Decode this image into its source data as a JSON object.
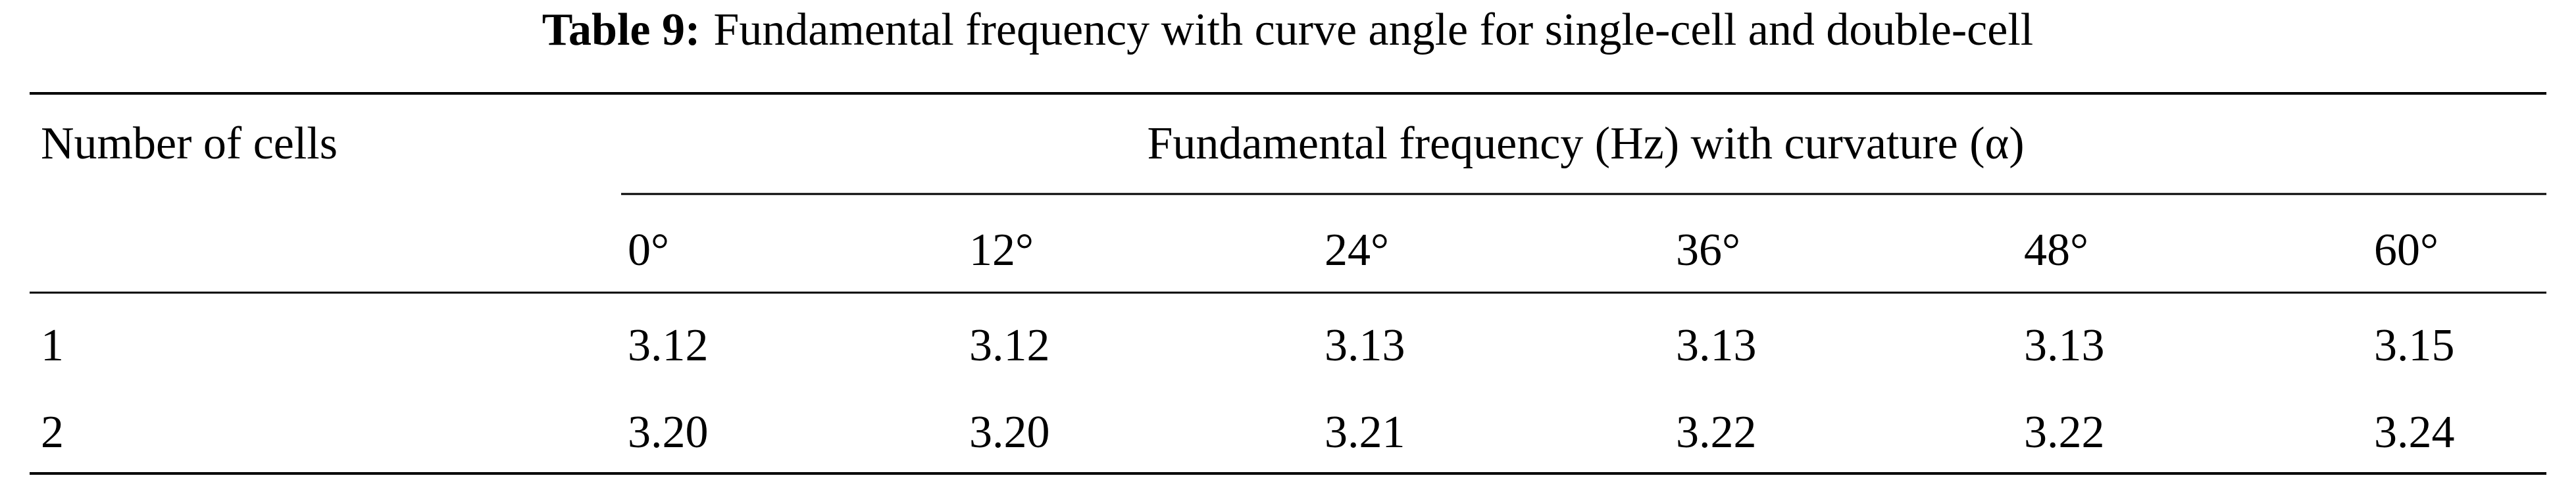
{
  "caption": {
    "label": "Table 9:",
    "text": "Fundamental frequency with curve angle for single-cell and double-cell"
  },
  "table": {
    "row_header": "Number of cells",
    "group_header": "Fundamental frequency (Hz) with curvature (α)",
    "columns": [
      "0°",
      "12°",
      "24°",
      "36°",
      "48°",
      "60°"
    ],
    "rows": [
      [
        "1",
        "3.12",
        "3.12",
        "3.13",
        "3.13",
        "3.13",
        "3.15"
      ],
      [
        "2",
        "3.20",
        "3.20",
        "3.21",
        "3.22",
        "3.22",
        "3.24"
      ]
    ]
  }
}
